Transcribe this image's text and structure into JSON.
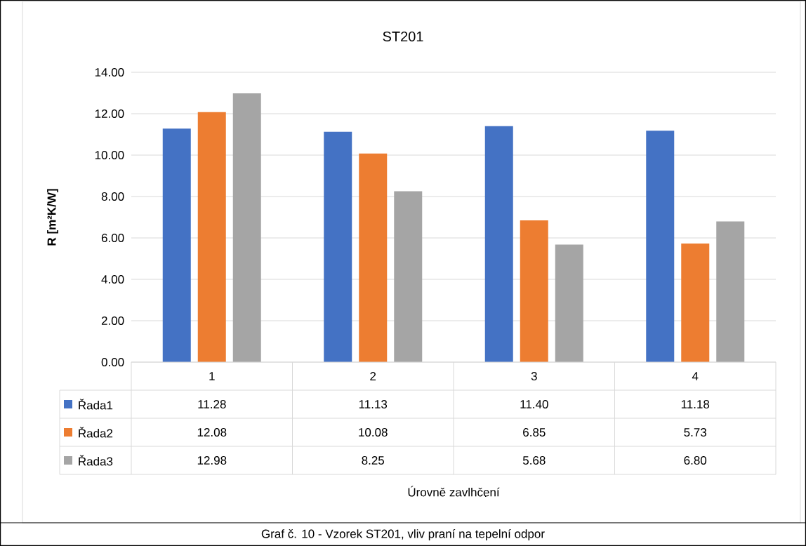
{
  "chart_data": {
    "type": "bar",
    "title": "ST201",
    "ylabel": "R [m²K/W]",
    "categories": [
      "1",
      "2",
      "3",
      "4"
    ],
    "series": [
      {
        "name": "Řada1",
        "color": "#4472c4",
        "values": [
          11.28,
          11.13,
          11.4,
          11.18
        ],
        "value_labels": [
          "11.28",
          "11.13",
          "11.40",
          "11.18"
        ]
      },
      {
        "name": "Řada2",
        "color": "#ed7d31",
        "values": [
          12.08,
          10.08,
          6.85,
          5.73
        ],
        "value_labels": [
          "12.08",
          "10.08",
          "6.85",
          "5.73"
        ]
      },
      {
        "name": "Řada3",
        "color": "#a5a5a5",
        "values": [
          12.98,
          8.25,
          5.68,
          6.8
        ],
        "value_labels": [
          "12.98",
          "8.25",
          "5.68",
          "6.80"
        ]
      }
    ],
    "ylim": [
      0,
      14
    ],
    "yticks": [
      {
        "value": 0,
        "label": "0.00"
      },
      {
        "value": 2,
        "label": "2.00"
      },
      {
        "value": 4,
        "label": "4.00"
      },
      {
        "value": 6,
        "label": "6.00"
      },
      {
        "value": 8,
        "label": "8.00"
      },
      {
        "value": 10,
        "label": "10.00"
      },
      {
        "value": 12,
        "label": "12.00"
      },
      {
        "value": 14,
        "label": "14.00"
      }
    ],
    "grid": "y",
    "legend": "bottom",
    "annotations": [
      "Úrovně zavlhčení",
      "Graf č. 10 - Vzorek ST201, vliv praní na tepelní odpor"
    ]
  }
}
